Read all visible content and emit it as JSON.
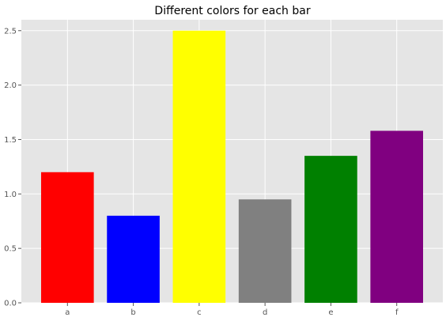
{
  "chart_data": {
    "type": "bar",
    "title": "Different colors for each bar",
    "xlabel": "",
    "ylabel": "",
    "categories": [
      "a",
      "b",
      "c",
      "d",
      "e",
      "f"
    ],
    "values": [
      1.2,
      0.8,
      2.5,
      0.95,
      1.35,
      1.58
    ],
    "colors": [
      "#ff0000",
      "#0000ff",
      "#ffff00",
      "#808080",
      "#008000",
      "#800080"
    ],
    "ylim": [
      0,
      2.6
    ],
    "yticks": [
      "0.0",
      "0.5",
      "1.0",
      "1.5",
      "2.0",
      "2.5"
    ],
    "grid": true,
    "legend": "none",
    "style": {
      "plot_background": "#e5e5e5",
      "grid_color": "#ffffff"
    }
  }
}
